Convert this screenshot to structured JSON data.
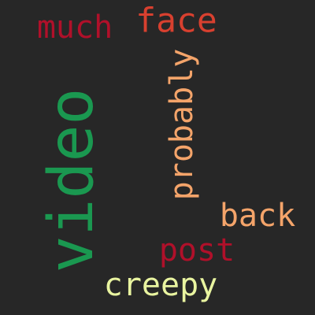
{
  "words": [
    {
      "id": "much",
      "text": "much",
      "color": "#b0102a"
    },
    {
      "id": "face",
      "text": "face",
      "color": "#d8402f"
    },
    {
      "id": "probably",
      "text": "probably",
      "color": "#f4a46a"
    },
    {
      "id": "video",
      "text": "video",
      "color": "#1a9850"
    },
    {
      "id": "back",
      "text": "back",
      "color": "#f4a46a"
    },
    {
      "id": "post",
      "text": "post",
      "color": "#b0102a"
    },
    {
      "id": "creepy",
      "text": "creepy",
      "color": "#e9f4a0"
    }
  ]
}
